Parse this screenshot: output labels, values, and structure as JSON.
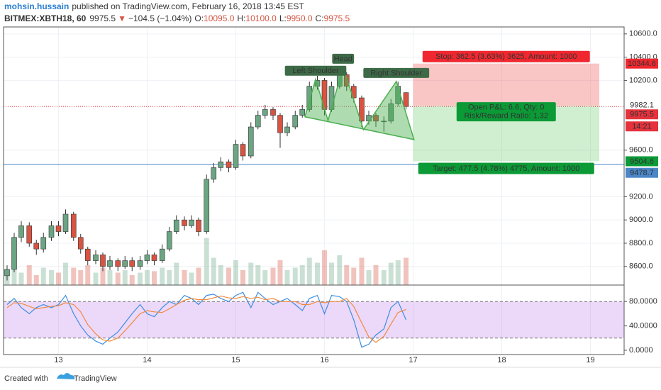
{
  "header": {
    "author": "mohsin.hussain",
    "published": "published on TradingView.com, February 16, 2018 13:45 EST",
    "symbol": "BITMEX:XBTH18, 60",
    "last": "9975.5",
    "arrow": "▼",
    "change": "−104.5 (−1.04%)",
    "ohlc": [
      {
        "key": "O:",
        "value": "10095.0"
      },
      {
        "key": "H:",
        "value": "10100.0"
      },
      {
        "key": "L:",
        "value": "9950.0"
      },
      {
        "key": "C:",
        "value": "9975.5"
      }
    ]
  },
  "chart_data": {
    "type": "candlestick",
    "x": [
      12.42,
      12.5,
      12.58,
      12.67,
      12.75,
      12.83,
      12.92,
      13,
      13.08,
      13.17,
      13.25,
      13.33,
      13.42,
      13.5,
      13.58,
      13.67,
      13.75,
      13.83,
      13.92,
      14,
      14.08,
      14.17,
      14.25,
      14.33,
      14.42,
      14.5,
      14.58,
      14.67,
      14.75,
      14.83,
      14.92,
      15,
      15.08,
      15.17,
      15.25,
      15.33,
      15.42,
      15.5,
      15.58,
      15.67,
      15.75,
      15.83,
      15.92,
      16,
      16.08,
      16.17,
      16.25,
      16.33,
      16.42,
      16.5,
      16.58,
      16.67,
      16.75,
      16.83,
      16.92
    ],
    "candles": [
      [
        8520,
        8610,
        8480,
        8575
      ],
      [
        8575,
        8890,
        8550,
        8850
      ],
      [
        8850,
        8990,
        8810,
        8950
      ],
      [
        8950,
        8980,
        8770,
        8800
      ],
      [
        8800,
        8830,
        8700,
        8750
      ],
      [
        8750,
        8890,
        8720,
        8850
      ],
      [
        8850,
        8990,
        8820,
        8950
      ],
      [
        8950,
        8990,
        8860,
        8900
      ],
      [
        8900,
        9090,
        8880,
        9050
      ],
      [
        9050,
        9070,
        8820,
        8850
      ],
      [
        8850,
        8880,
        8710,
        8750
      ],
      [
        8750,
        8770,
        8610,
        8650
      ],
      [
        8650,
        8740,
        8620,
        8700
      ],
      [
        8700,
        8720,
        8560,
        8600
      ],
      [
        8600,
        8690,
        8570,
        8650
      ],
      [
        8650,
        8670,
        8560,
        8600
      ],
      [
        8600,
        8690,
        8580,
        8650
      ],
      [
        8650,
        8680,
        8560,
        8600
      ],
      [
        8600,
        8690,
        8570,
        8650
      ],
      [
        8650,
        8740,
        8620,
        8700
      ],
      [
        8700,
        8720,
        8610,
        8650
      ],
      [
        8650,
        8790,
        8630,
        8750
      ],
      [
        8750,
        8940,
        8730,
        8900
      ],
      [
        8900,
        9040,
        8880,
        9000
      ],
      [
        9000,
        9030,
        8910,
        8950
      ],
      [
        8950,
        9040,
        8930,
        9000
      ],
      [
        9000,
        9020,
        8860,
        8900
      ],
      [
        8900,
        9390,
        8880,
        9350
      ],
      [
        9350,
        9490,
        9320,
        9450
      ],
      [
        9450,
        9540,
        9420,
        9500
      ],
      [
        9500,
        9520,
        9410,
        9450
      ],
      [
        9450,
        9690,
        9430,
        9650
      ],
      [
        9650,
        9670,
        9510,
        9550
      ],
      [
        9550,
        9840,
        9530,
        9800
      ],
      [
        9800,
        9940,
        9780,
        9900
      ],
      [
        9900,
        9990,
        9870,
        9950
      ],
      [
        9950,
        9970,
        9860,
        9900
      ],
      [
        9900,
        9920,
        9620,
        9750
      ],
      [
        9750,
        9840,
        9720,
        9800
      ],
      [
        9800,
        9940,
        9780,
        9900
      ],
      [
        9900,
        9990,
        9880,
        9950
      ],
      [
        9950,
        10190,
        9930,
        10150
      ],
      [
        10150,
        10240,
        10120,
        10200
      ],
      [
        10200,
        10220,
        9900,
        9950
      ],
      [
        9950,
        10190,
        9930,
        10150
      ],
      [
        10150,
        10300,
        10130,
        10250
      ],
      [
        10250,
        10270,
        10110,
        10150
      ],
      [
        10150,
        10170,
        10010,
        10050
      ],
      [
        10050,
        10070,
        9800,
        9850
      ],
      [
        9850,
        9940,
        9820,
        9900
      ],
      [
        9900,
        9920,
        9800,
        9850
      ],
      [
        9850,
        9890,
        9760,
        9850
      ],
      [
        9850,
        10040,
        9830,
        10000
      ],
      [
        10000,
        10190,
        9980,
        10150
      ],
      [
        10095,
        10100,
        9950,
        9975.5
      ]
    ],
    "up_color": "#6ba583",
    "down_color": "#d75442",
    "volume": [
      30,
      45,
      25,
      40,
      20,
      35,
      30,
      25,
      45,
      35,
      30,
      40,
      25,
      35,
      30,
      25,
      30,
      20,
      25,
      30,
      28,
      35,
      30,
      45,
      30,
      25,
      35,
      95,
      55,
      40,
      35,
      50,
      30,
      45,
      40,
      30,
      35,
      50,
      30,
      35,
      40,
      55,
      45,
      70,
      45,
      60,
      40,
      35,
      55,
      30,
      40,
      30,
      45,
      50,
      55
    ],
    "volume_lim": [
      0,
      110
    ],
    "xlim": [
      12.34,
      19.38
    ],
    "xticks": [
      13,
      14,
      15,
      16,
      17,
      18,
      19
    ],
    "ylim": [
      8440,
      10660
    ],
    "yticks": [
      {
        "value": 10600,
        "label": "10600.0"
      },
      {
        "value": 10400,
        "label": "10400.0"
      },
      {
        "value": 10200,
        "label": "10200.0"
      },
      {
        "value": 9600,
        "label": "9600.0"
      },
      {
        "value": 9200,
        "label": "9200.0"
      },
      {
        "value": 9000,
        "label": "9000.0"
      },
      {
        "value": 8800,
        "label": "8800.0"
      },
      {
        "value": 8600,
        "label": "8600.0"
      }
    ],
    "grid": true,
    "last_price": {
      "value": 9975.5,
      "label": "9975.5",
      "countdown": "14:21",
      "color": "#e5323c"
    },
    "hline": {
      "value": 9478.7,
      "label": "9478.7",
      "color": "#4a86c8"
    },
    "position": {
      "x": [
        17,
        19.1
      ],
      "entry": 9982.1,
      "stop": 10344.6,
      "target": 9504.6,
      "entry_label": "9982.1",
      "stop_tag": "10344.6",
      "target_tag": "9504.6",
      "stop_text": "Stop: 362.5 (3.63%) 3625, Amount: 1000",
      "target_text": "Target: 477.5 (4.78%) 4775, Amount: 1000",
      "pnl_text": "Open P&L: 6.6, Qty: 0",
      "ratio_text": "Risk/Reward Ratio: 1.32"
    },
    "pattern": {
      "points": [
        [
          15.78,
          9887
        ],
        [
          15.9,
          10210
        ],
        [
          16.04,
          9856
        ],
        [
          16.21,
          10313
        ],
        [
          16.44,
          9777
        ],
        [
          16.81,
          10191
        ],
        [
          17.01,
          9691
        ]
      ],
      "labels": [
        "Left Shoulder",
        "Head",
        "Right Shoulder"
      ]
    },
    "stoch": {
      "ylim": [
        -7,
        107
      ],
      "yticks": [
        {
          "value": 80,
          "label": "80.0000"
        },
        {
          "value": 40,
          "label": "40.0000"
        },
        {
          "value": 0,
          "label": "0.0000"
        }
      ],
      "bands": [
        80,
        20
      ],
      "k": [
        75,
        85,
        70,
        60,
        70,
        75,
        70,
        75,
        90,
        60,
        40,
        25,
        15,
        10,
        20,
        30,
        45,
        60,
        75,
        60,
        55,
        70,
        80,
        75,
        90,
        85,
        75,
        90,
        92,
        85,
        80,
        90,
        95,
        70,
        95,
        85,
        75,
        80,
        85,
        75,
        65,
        85,
        90,
        60,
        90,
        88,
        80,
        50,
        5,
        10,
        25,
        35,
        70,
        80,
        50
      ],
      "d": [
        70,
        78,
        77,
        72,
        68,
        70,
        72,
        73,
        78,
        75,
        63,
        42,
        27,
        17,
        15,
        20,
        32,
        45,
        60,
        65,
        63,
        62,
        68,
        75,
        82,
        85,
        83,
        83,
        86,
        89,
        86,
        85,
        88,
        85,
        87,
        83,
        85,
        80,
        80,
        80,
        75,
        75,
        80,
        78,
        80,
        80,
        85,
        72,
        45,
        22,
        13,
        23,
        43,
        62,
        67
      ],
      "k_color": "#3d8ee0",
      "d_color": "#f08a3c"
    }
  },
  "footer": {
    "created": "Created with",
    "brand": "TradingView"
  }
}
